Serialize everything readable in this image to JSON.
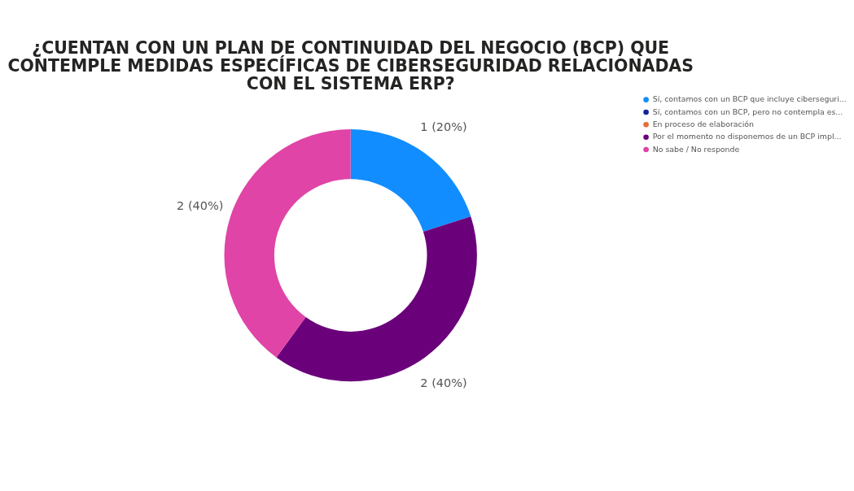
{
  "chart_data": {
    "type": "donut",
    "title": "¿CUENTAN CON UN PLAN DE CONTINUIDAD DEL NEGOCIO (BCP) QUE\nCONTEMPLE MEDIDAS ESPECÍFICAS DE CIBERSEGURIDAD RELACIONADAS\nCON EL SISTEMA ERP?",
    "categories": [
      "Sí, contamos con un BCP que incluye ciberseguri...",
      "Sí, contamos con un BCP, pero no contempla es...",
      "En proceso de elaboración",
      "Por el momento no disponemos de un BCP impl...",
      "No sabe / No responde"
    ],
    "values": [
      1,
      0,
      0,
      2,
      2
    ],
    "value_labels": [
      "1 (20%)",
      null,
      null,
      "2 (40%)",
      "2 (40%)"
    ],
    "colors": [
      "#118dff",
      "#12239e",
      "#e66c37",
      "#6b007b",
      "#e044a7"
    ],
    "legend": "right"
  }
}
